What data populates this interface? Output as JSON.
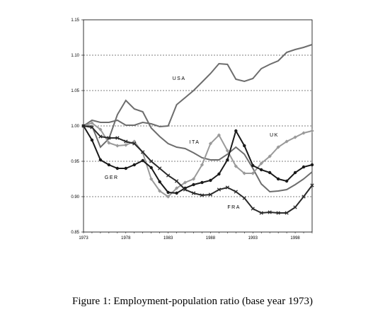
{
  "caption": "Figure 1: Employment-population ratio (base year 1973)",
  "chart_data": {
    "type": "line",
    "x": [
      1973,
      1974,
      1975,
      1976,
      1977,
      1978,
      1979,
      1980,
      1981,
      1982,
      1983,
      1984,
      1985,
      1986,
      1987,
      1988,
      1989,
      1990,
      1991,
      1992,
      1993,
      1994,
      1995,
      1996,
      1997,
      1998,
      1999,
      2000
    ],
    "ylim": [
      0.85,
      1.15
    ],
    "xlim": [
      1973,
      2000
    ],
    "y_ticks": [
      0.85,
      0.9,
      0.95,
      1.0,
      1.05,
      1.1,
      1.15
    ],
    "y_tick_labels": [
      "0.85",
      "0.90",
      "0.95",
      "1.00",
      "1.05",
      "1.10",
      "1.15"
    ],
    "x_ticks": [
      1973,
      1978,
      1983,
      1988,
      1993,
      1998
    ],
    "x_tick_labels": [
      "1973",
      "1978",
      "1983",
      "1988",
      "1993",
      "1998"
    ],
    "grid": "horizontal-dashed",
    "series": [
      {
        "name": "USA",
        "color": "#6d6d6d",
        "marker": "none",
        "values": [
          1.0,
          1.008,
          1.005,
          1.005,
          1.008,
          1.001,
          1.001,
          1.005,
          1.003,
          0.999,
          1.0,
          1.03,
          1.04,
          1.05,
          1.062,
          1.074,
          1.088,
          1.087,
          1.066,
          1.063,
          1.067,
          1.081,
          1.087,
          1.092,
          1.104,
          1.108,
          1.111,
          1.115
        ]
      },
      {
        "name": "ITA",
        "color": "#6d6d6d",
        "marker": "none",
        "values": [
          1.0,
          1.0,
          0.97,
          0.982,
          1.016,
          1.036,
          1.024,
          1.02,
          0.997,
          0.985,
          0.975,
          0.97,
          0.968,
          0.962,
          0.955,
          0.952,
          0.952,
          0.96,
          0.97,
          0.96,
          0.94,
          0.918,
          0.907,
          0.908,
          0.91,
          0.917,
          0.925,
          0.935
        ]
      },
      {
        "name": "UK",
        "color": "#9a9a9a",
        "marker": "diamond",
        "values": [
          1.0,
          1.004,
          0.995,
          0.976,
          0.972,
          0.973,
          0.978,
          0.962,
          0.925,
          0.908,
          0.9,
          0.912,
          0.92,
          0.925,
          0.945,
          0.975,
          0.987,
          0.965,
          0.943,
          0.933,
          0.933,
          0.947,
          0.957,
          0.97,
          0.978,
          0.984,
          0.99,
          0.993
        ]
      },
      {
        "name": "GER",
        "color": "#1a1a1a",
        "marker": "circle",
        "values": [
          1.0,
          0.98,
          0.952,
          0.945,
          0.94,
          0.94,
          0.945,
          0.951,
          0.941,
          0.921,
          0.906,
          0.905,
          0.912,
          0.917,
          0.92,
          0.923,
          0.932,
          0.952,
          0.993,
          0.972,
          0.944,
          0.938,
          0.934,
          0.925,
          0.922,
          0.934,
          0.942,
          0.945
        ]
      },
      {
        "name": "FRA",
        "color": "#2a2a2a",
        "marker": "x",
        "values": [
          1.0,
          0.998,
          0.985,
          0.983,
          0.983,
          0.978,
          0.975,
          0.963,
          0.95,
          0.94,
          0.93,
          0.922,
          0.91,
          0.905,
          0.902,
          0.903,
          0.91,
          0.913,
          0.907,
          0.898,
          0.883,
          0.877,
          0.878,
          0.877,
          0.877,
          0.885,
          0.9,
          0.916
        ]
      }
    ],
    "labels": [
      "USA",
      "ITA",
      "UK",
      "GER",
      "FRA"
    ]
  }
}
